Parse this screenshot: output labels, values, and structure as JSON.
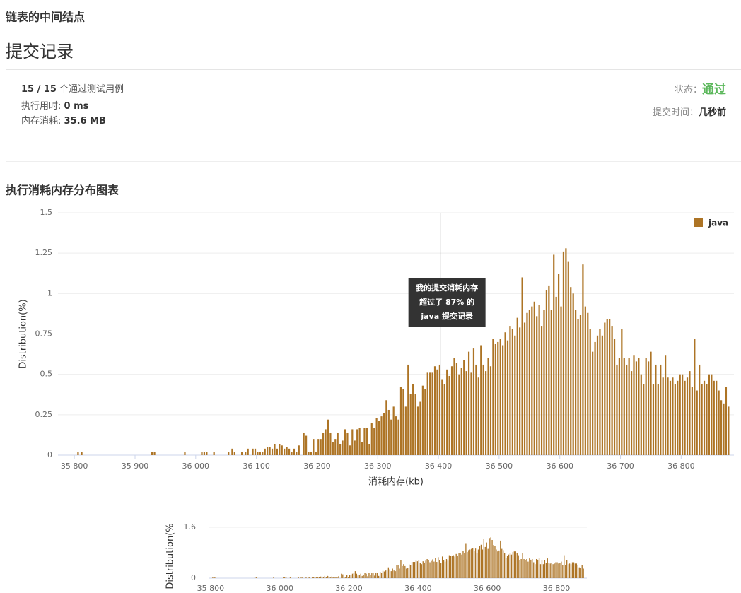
{
  "header": {
    "problem_title": "链表的中间结点",
    "page_title": "提交记录"
  },
  "submission": {
    "cases": "15 / 15",
    "cases_label": "个通过测试用例",
    "runtime_label": "执行用时: ",
    "runtime": "0 ms",
    "memory_label": "内存消耗: ",
    "memory": "35.6 MB",
    "status_label": "状态：",
    "status": "通过",
    "time_label": "提交时间：",
    "time": "几秒前"
  },
  "section_title": "执行消耗内存分布图表",
  "chart_data": [
    {
      "type": "bar",
      "y_label": "Distribution(%)",
      "x_label": "消耗内存(kb)",
      "legend": "top-right",
      "grid": true,
      "xlim": [
        35773,
        36887
      ],
      "ylim": [
        0,
        1.5
      ],
      "yticks": [
        0,
        0.25,
        0.5,
        0.75,
        1,
        1.25,
        1.5
      ],
      "xticks": [
        {
          "value": 35800,
          "label": "35 800"
        },
        {
          "value": 35900,
          "label": "35 900"
        },
        {
          "value": 36000,
          "label": "36 000"
        },
        {
          "value": 36100,
          "label": "36 100"
        },
        {
          "value": 36200,
          "label": "36 200"
        },
        {
          "value": 36300,
          "label": "36 300"
        },
        {
          "value": 36400,
          "label": "36 400"
        },
        {
          "value": 36500,
          "label": "36 500"
        },
        {
          "value": 36600,
          "label": "36 600"
        },
        {
          "value": 36700,
          "label": "36 700"
        },
        {
          "value": 36800,
          "label": "36 800"
        }
      ],
      "annotation": {
        "x": 36403,
        "lines": [
          "我的提交消耗内存",
          "超过了 87% 的",
          "java 提交记录"
        ]
      },
      "x": [
        35806,
        35812,
        35928,
        35932,
        35982,
        36010,
        36014,
        36018,
        36030,
        36054,
        36060,
        36064,
        36076,
        36082,
        36086,
        36094,
        36098,
        36102,
        36106,
        36110,
        36114,
        36118,
        36122,
        36126,
        36130,
        36134,
        36138,
        36142,
        36146,
        36150,
        36154,
        36158,
        36162,
        36166,
        36170,
        36178,
        36182,
        36186,
        36190,
        36194,
        36198,
        36202,
        36206,
        36210,
        36214,
        36218,
        36222,
        36226,
        36230,
        36234,
        36238,
        36242,
        36246,
        36250,
        36254,
        36258,
        36262,
        36266,
        36270,
        36274,
        36278,
        36282,
        36286,
        36290,
        36294,
        36298,
        36302,
        36306,
        36310,
        36314,
        36318,
        36322,
        36326,
        36330,
        36334,
        36338,
        36342,
        36346,
        36350,
        36354,
        36358,
        36362,
        36366,
        36370,
        36374,
        36378,
        36382,
        36386,
        36390,
        36394,
        36398,
        36402,
        36406,
        36410,
        36414,
        36418,
        36422,
        36426,
        36430,
        36434,
        36438,
        36442,
        36446,
        36450,
        36454,
        36458,
        36462,
        36466,
        36470,
        36474,
        36478,
        36482,
        36486,
        36490,
        36494,
        36498,
        36502,
        36506,
        36510,
        36514,
        36518,
        36522,
        36526,
        36530,
        36534,
        36538,
        36542,
        36546,
        36550,
        36554,
        36558,
        36562,
        36566,
        36570,
        36574,
        36578,
        36582,
        36586,
        36590,
        36594,
        36598,
        36602,
        36606,
        36610,
        36614,
        36618,
        36622,
        36626,
        36630,
        36634,
        36638,
        36642,
        36646,
        36650,
        36654,
        36658,
        36662,
        36666,
        36670,
        36674,
        36678,
        36682,
        36686,
        36690,
        36694,
        36698,
        36702,
        36706,
        36710,
        36714,
        36718,
        36722,
        36726,
        36730,
        36734,
        36738,
        36742,
        36746,
        36750,
        36754,
        36758,
        36762,
        36766,
        36770,
        36774,
        36778,
        36782,
        36786,
        36790,
        36794,
        36798,
        36802,
        36806,
        36810,
        36814,
        36818,
        36822,
        36826,
        36830,
        36834,
        36838,
        36842,
        36846,
        36850,
        36854,
        36858,
        36862,
        36866,
        36870,
        36874,
        36878
      ],
      "series": [
        {
          "name": "java",
          "color": "#ad7425",
          "values": [
            0.02,
            0.02,
            0.02,
            0.02,
            0.02,
            0.02,
            0.02,
            0.02,
            0.02,
            0.02,
            0.04,
            0.02,
            0.02,
            0.02,
            0.04,
            0.04,
            0.04,
            0.02,
            0.02,
            0.02,
            0.04,
            0.05,
            0.05,
            0.04,
            0.07,
            0.04,
            0.07,
            0.06,
            0.04,
            0.05,
            0.04,
            0.02,
            0.04,
            0.02,
            0.06,
            0.14,
            0.12,
            0.02,
            0.02,
            0.1,
            0.02,
            0.1,
            0.1,
            0.14,
            0.16,
            0.22,
            0.14,
            0.08,
            0.1,
            0.14,
            0.07,
            0.09,
            0.16,
            0.14,
            0.06,
            0.16,
            0.09,
            0.16,
            0.17,
            0.08,
            0.17,
            0.17,
            0.07,
            0.2,
            0.17,
            0.23,
            0.21,
            0.24,
            0.26,
            0.34,
            0.28,
            0.22,
            0.3,
            0.24,
            0.22,
            0.42,
            0.41,
            0.3,
            0.56,
            0.38,
            0.44,
            0.38,
            0.3,
            0.33,
            0.43,
            0.41,
            0.51,
            0.51,
            0.51,
            0.55,
            0.53,
            0.56,
            0.47,
            0.44,
            0.53,
            0.49,
            0.55,
            0.6,
            0.57,
            0.5,
            0.54,
            0.59,
            0.52,
            0.64,
            0.51,
            0.66,
            0.56,
            0.48,
            0.68,
            0.56,
            0.52,
            0.6,
            0.55,
            0.72,
            0.69,
            0.7,
            0.72,
            0.68,
            0.76,
            0.71,
            0.8,
            0.78,
            0.74,
            0.85,
            0.79,
            1.1,
            0.82,
            0.88,
            0.9,
            0.92,
            0.95,
            0.86,
            0.93,
            0.8,
            0.9,
            1.02,
            1.05,
            0.9,
            1.24,
            0.98,
            1.12,
            0.92,
            1.26,
            1.28,
            1.2,
            1.04,
            1.0,
            0.9,
            0.84,
            0.87,
            1.18,
            0.92,
            0.88,
            0.78,
            0.64,
            0.7,
            0.74,
            0.78,
            0.74,
            0.82,
            0.84,
            0.84,
            0.8,
            0.72,
            0.56,
            0.6,
            0.78,
            0.6,
            0.56,
            0.6,
            0.52,
            0.62,
            0.58,
            0.6,
            0.5,
            0.44,
            0.6,
            0.58,
            0.64,
            0.44,
            0.56,
            0.44,
            0.56,
            0.48,
            0.62,
            0.48,
            0.46,
            0.48,
            0.44,
            0.46,
            0.5,
            0.5,
            0.46,
            0.48,
            0.52,
            0.42,
            0.72,
            0.4,
            0.56,
            0.44,
            0.46,
            0.44,
            0.5,
            0.5,
            0.46,
            0.46,
            0.4,
            0.34,
            0.32,
            0.42,
            0.3
          ]
        }
      ]
    },
    {
      "type": "navigator",
      "y_label": "Distribution(%",
      "xlim": [
        35794,
        36888
      ],
      "ylim": [
        0,
        1.6
      ],
      "yticks": [
        0,
        1.6
      ],
      "xticks": [
        {
          "value": 35800,
          "label": "35 800"
        },
        {
          "value": 36000,
          "label": "36 000"
        },
        {
          "value": 36200,
          "label": "36 200"
        },
        {
          "value": 36400,
          "label": "36 400"
        },
        {
          "value": 36600,
          "label": "36 600"
        },
        {
          "value": 36800,
          "label": "36 800"
        }
      ]
    }
  ]
}
